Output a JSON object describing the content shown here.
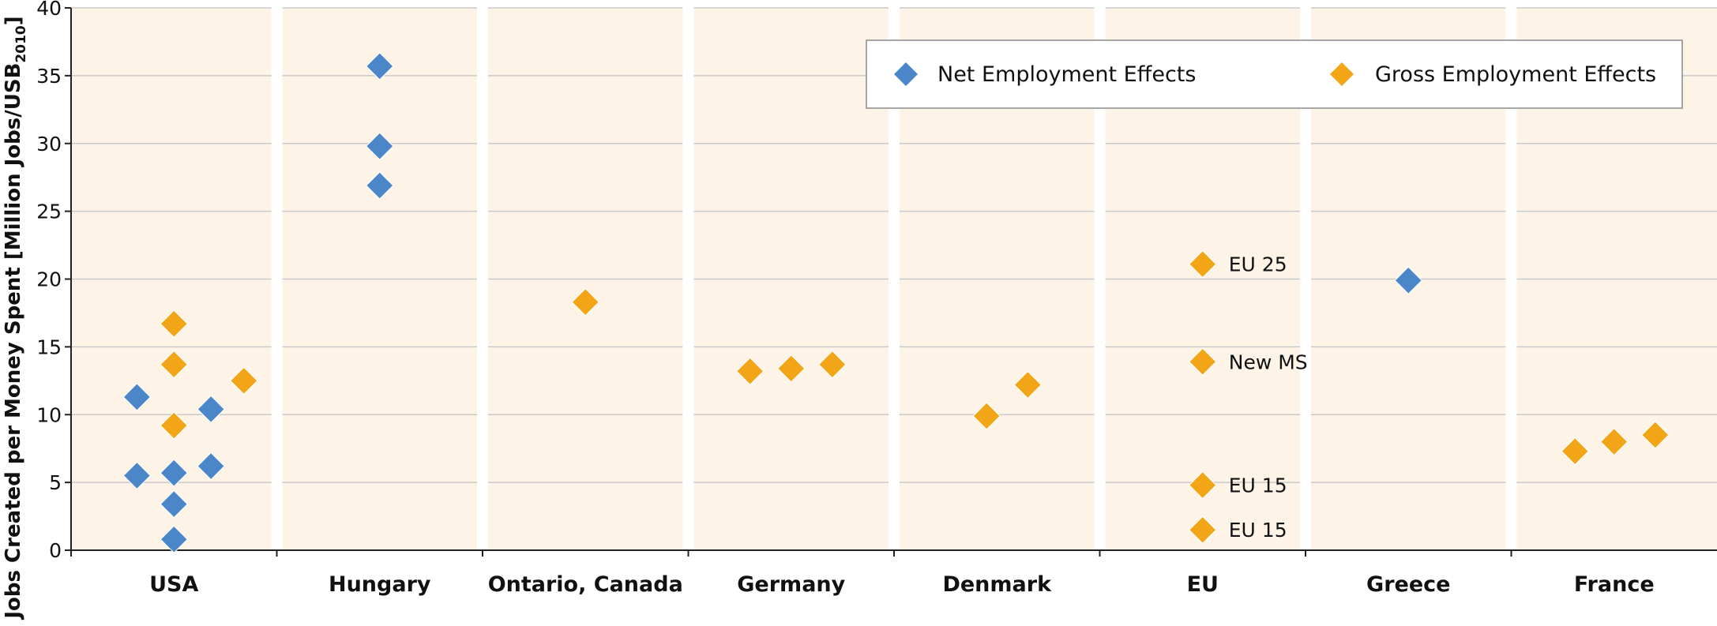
{
  "chart_data": {
    "type": "scatter",
    "ylabel_main": "Jobs Created per Money Spent [Million Jobs/USB",
    "ylabel_sub": "2010",
    "ylabel_end": "]",
    "ylim": [
      0,
      40
    ],
    "yticks": [
      "0",
      "5",
      "10",
      "15",
      "20",
      "25",
      "30",
      "35",
      "40"
    ],
    "grid": true,
    "legend_position": "top-right",
    "categories": [
      "USA",
      "Hungary",
      "Ontario, Canada",
      "Germany",
      "Denmark",
      "EU",
      "Greece",
      "France"
    ],
    "series": [
      {
        "name": "Net Employment Effects",
        "color": "#4a86c8",
        "points": [
          {
            "cat": "USA",
            "offset": -0.18,
            "y": 11.3
          },
          {
            "cat": "USA",
            "offset": -0.18,
            "y": 5.5
          },
          {
            "cat": "USA",
            "offset": 0.0,
            "y": 5.7
          },
          {
            "cat": "USA",
            "offset": 0.0,
            "y": 3.4
          },
          {
            "cat": "USA",
            "offset": 0.0,
            "y": 0.8
          },
          {
            "cat": "USA",
            "offset": 0.18,
            "y": 10.4
          },
          {
            "cat": "USA",
            "offset": 0.18,
            "y": 6.2
          },
          {
            "cat": "Hungary",
            "offset": 0.0,
            "y": 35.7
          },
          {
            "cat": "Hungary",
            "offset": 0.0,
            "y": 29.8
          },
          {
            "cat": "Hungary",
            "offset": 0.0,
            "y": 26.9
          },
          {
            "cat": "Greece",
            "offset": 0.0,
            "y": 19.9
          }
        ]
      },
      {
        "name": "Gross Employment Effects",
        "color": "#f2a617",
        "points": [
          {
            "cat": "USA",
            "offset": 0.0,
            "y": 16.7
          },
          {
            "cat": "USA",
            "offset": 0.0,
            "y": 13.7
          },
          {
            "cat": "USA",
            "offset": 0.0,
            "y": 9.2
          },
          {
            "cat": "USA",
            "offset": 0.34,
            "y": 12.5
          },
          {
            "cat": "Ontario, Canada",
            "offset": 0.0,
            "y": 18.3
          },
          {
            "cat": "Germany",
            "offset": -0.2,
            "y": 13.2
          },
          {
            "cat": "Germany",
            "offset": 0.0,
            "y": 13.4
          },
          {
            "cat": "Germany",
            "offset": 0.2,
            "y": 13.7
          },
          {
            "cat": "Denmark",
            "offset": -0.05,
            "y": 9.9
          },
          {
            "cat": "Denmark",
            "offset": 0.15,
            "y": 12.2
          },
          {
            "cat": "EU",
            "offset": 0.0,
            "y": 21.1,
            "label": "EU 25"
          },
          {
            "cat": "EU",
            "offset": 0.0,
            "y": 13.9,
            "label": "New MS"
          },
          {
            "cat": "EU",
            "offset": 0.0,
            "y": 4.8,
            "label": "EU 15"
          },
          {
            "cat": "EU",
            "offset": 0.0,
            "y": 1.5,
            "label": "EU 15"
          },
          {
            "cat": "France",
            "offset": -0.19,
            "y": 7.3
          },
          {
            "cat": "France",
            "offset": 0.0,
            "y": 8.0
          },
          {
            "cat": "France",
            "offset": 0.2,
            "y": 8.5
          }
        ]
      }
    ]
  },
  "colors": {
    "panel_background": "#fdf4e7",
    "gridline": "#c9c9c9",
    "net": "#4a86c8",
    "gross": "#f2a617"
  }
}
